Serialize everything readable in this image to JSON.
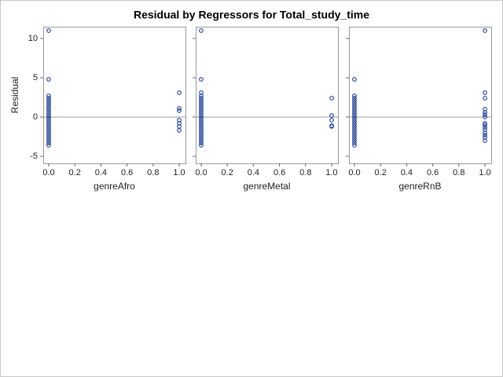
{
  "title": "Residual by Regressors for Total_study_time",
  "chart_data": [
    {
      "type": "scatter",
      "x_label": "genreAfro",
      "y_label": "Residual",
      "color": "#1f3f8f",
      "x": [
        0,
        0,
        0,
        0,
        0,
        0,
        0,
        0,
        0,
        0,
        0,
        0,
        0,
        0,
        0,
        0,
        0,
        0,
        0,
        0,
        0,
        0,
        0,
        0,
        1,
        1,
        1,
        1,
        1,
        1,
        1
      ],
      "y": [
        11,
        4.8,
        2.7,
        2.4,
        2.1,
        1.8,
        1.5,
        1.2,
        0.9,
        0.6,
        0.3,
        0,
        -0.3,
        -0.6,
        -0.9,
        -1.2,
        -1.5,
        -1.8,
        -2.1,
        -2.4,
        -2.7,
        -3.0,
        -3.3,
        -3.6,
        3.1,
        1.1,
        0.8,
        -0.4,
        -0.8,
        -1.2,
        -1.7
      ],
      "xlim": [
        -0.042,
        1.048
      ],
      "ylim": [
        -5.9,
        11.5
      ],
      "xticks": [
        {
          "value": 0,
          "label": "0.0"
        },
        0.2,
        0.4,
        0.6,
        0.8,
        {
          "value": 1,
          "label": "1.0"
        }
      ],
      "yticks": [
        -5,
        0,
        5,
        10
      ],
      "reference_line": 0
    },
    {
      "type": "scatter",
      "x_label": "genreMetal",
      "color": "#1f3f8f",
      "x": [
        0,
        0,
        0,
        0,
        0,
        0,
        0,
        0,
        0,
        0,
        0,
        0,
        0,
        0,
        0,
        0,
        0,
        0,
        0,
        0,
        0,
        0,
        0,
        0,
        0,
        1,
        1,
        1,
        1,
        1
      ],
      "y": [
        11,
        4.8,
        3.1,
        2.7,
        2.4,
        2.1,
        1.8,
        1.5,
        1.2,
        0.9,
        0.6,
        0.3,
        0,
        -0.3,
        -0.6,
        -0.9,
        -1.2,
        -1.5,
        -1.8,
        -2.1,
        -2.4,
        -2.7,
        -3.0,
        -3.3,
        -3.6,
        2.4,
        0.2,
        -0.4,
        -1.1,
        -1.2
      ],
      "xlim": [
        -0.042,
        1.048
      ],
      "ylim": [
        -5.9,
        11.5
      ],
      "xticks": [
        {
          "value": 0,
          "label": "0.0"
        },
        0.2,
        0.4,
        0.6,
        0.8,
        {
          "value": 1,
          "label": "1.0"
        }
      ],
      "yticks": [
        -5,
        0,
        5,
        10
      ],
      "reference_line": 0
    },
    {
      "type": "scatter",
      "x_label": "genreRnB",
      "color": "#1f3f8f",
      "x": [
        0,
        0,
        0,
        0,
        0,
        0,
        0,
        0,
        0,
        0,
        0,
        0,
        0,
        0,
        0,
        0,
        0,
        0,
        0,
        0,
        0,
        0,
        0,
        1,
        1,
        1,
        1,
        1,
        1,
        1,
        1,
        1,
        1,
        1,
        1,
        1,
        1,
        1
      ],
      "y": [
        4.8,
        2.7,
        2.4,
        2.1,
        1.8,
        1.5,
        1.2,
        0.9,
        0.6,
        0.3,
        0,
        -0.3,
        -0.6,
        -0.9,
        -1.2,
        -1.5,
        -1.8,
        -2.1,
        -2.4,
        -2.7,
        -3.0,
        -3.3,
        -3.6,
        11,
        3.1,
        2.4,
        1.0,
        0.6,
        0.3,
        0,
        -0.8,
        -1.0,
        -1.3,
        -1.6,
        -2.0,
        -2.3,
        -2.6,
        -3.0
      ],
      "xlim": [
        -0.042,
        1.048
      ],
      "ylim": [
        -5.9,
        11.5
      ],
      "xticks": [
        {
          "value": 0,
          "label": "0.0"
        },
        0.2,
        0.4,
        0.6,
        0.8,
        {
          "value": 1,
          "label": "1.0"
        }
      ],
      "yticks": [
        -5,
        0,
        5,
        10
      ],
      "reference_line": 0
    }
  ]
}
